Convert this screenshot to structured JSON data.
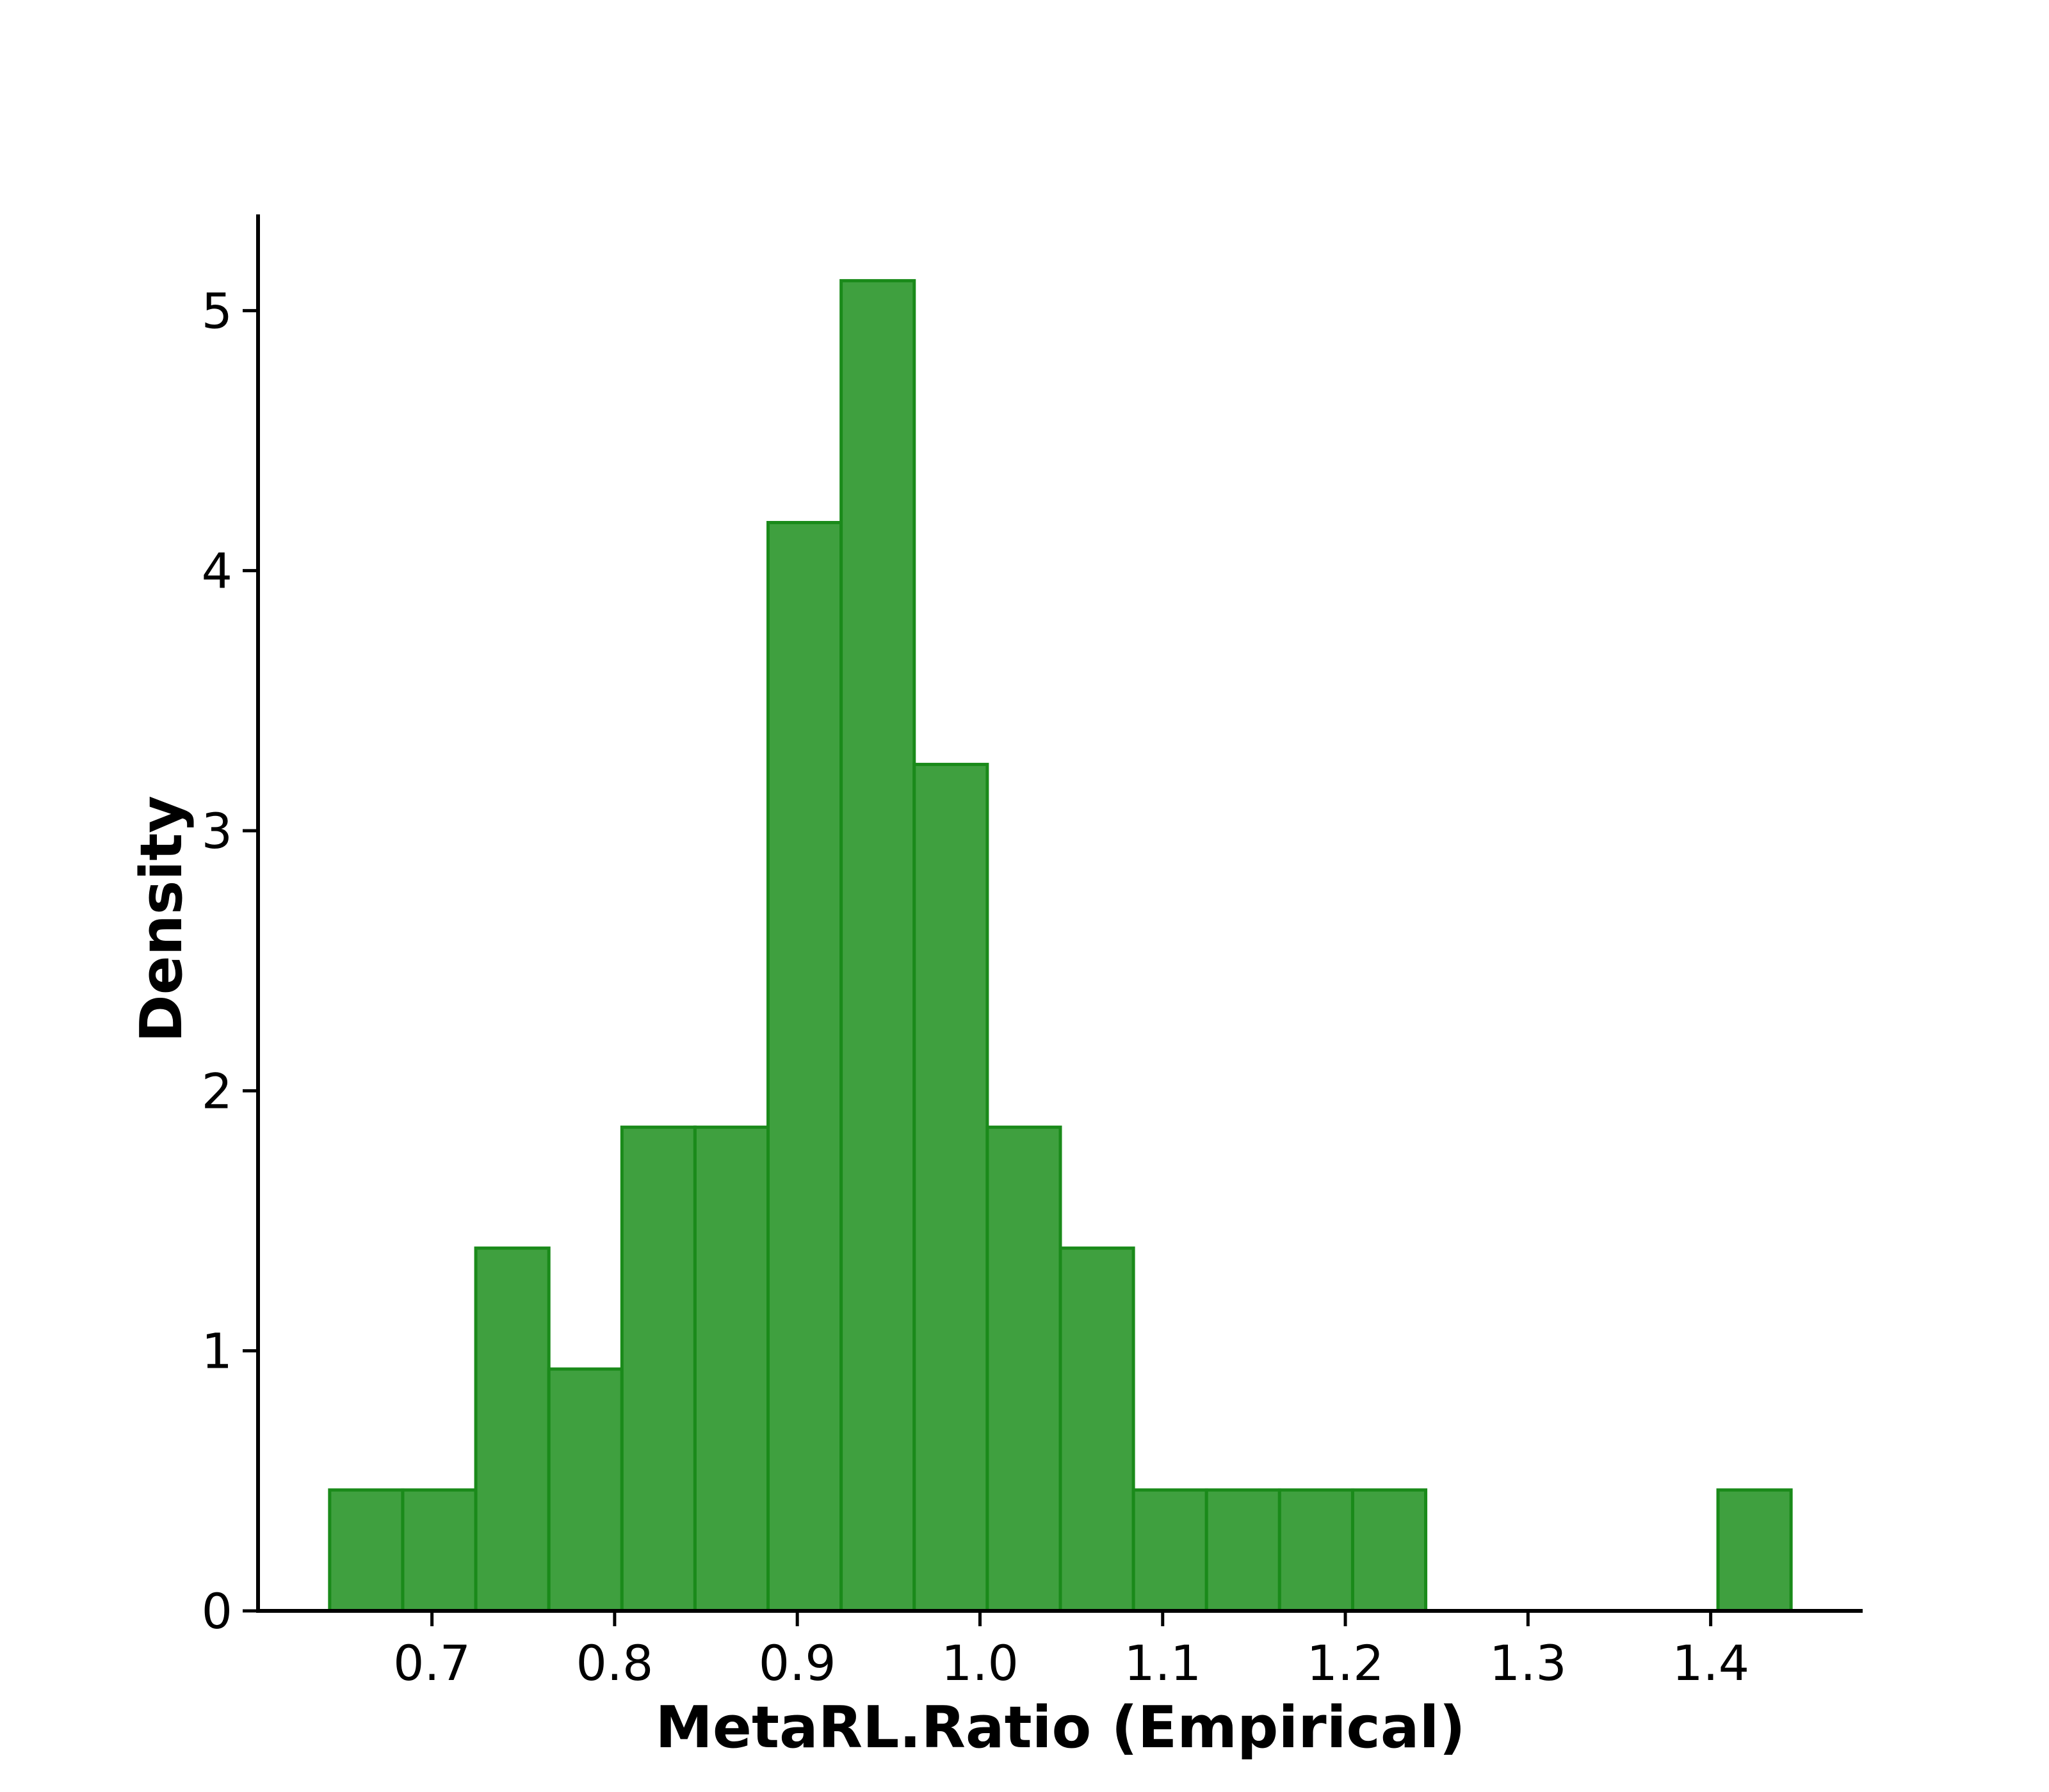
{
  "chart_data": {
    "type": "bar",
    "subtype": "histogram",
    "title": "",
    "xlabel": "MetaRL.Ratio (Empirical)",
    "ylabel": "Density",
    "xlim": [
      0.6048,
      1.4832
    ],
    "ylim": [
      0,
      5.37
    ],
    "xticks": [
      0.7,
      0.8,
      0.9,
      1.0,
      1.1,
      1.2,
      1.3,
      1.4
    ],
    "xtick_labels": [
      "0.7",
      "0.8",
      "0.9",
      "1.0",
      "1.1",
      "1.2",
      "1.3",
      "1.4"
    ],
    "yticks": [
      0,
      1,
      2,
      3,
      4,
      5
    ],
    "ytick_labels": [
      "0",
      "1",
      "2",
      "3",
      "4",
      "5"
    ],
    "bin_edges": [
      0.644,
      0.684,
      0.724,
      0.764,
      0.804,
      0.844,
      0.884,
      0.924,
      0.964,
      1.004,
      1.044,
      1.084,
      1.124,
      1.164,
      1.204,
      1.244,
      1.284,
      1.324,
      1.364,
      1.404,
      1.444
    ],
    "values": [
      0.465,
      0.465,
      1.395,
      0.93,
      1.86,
      1.86,
      4.185,
      5.115,
      3.255,
      1.86,
      1.395,
      0.465,
      0.465,
      0.465,
      0.465,
      0,
      0,
      0,
      0,
      0.465
    ],
    "bar_fill": "#3fa03f",
    "bar_edge": "#1a8a1a",
    "axis_color": "#000000",
    "grid": false,
    "spines": [
      "left",
      "bottom"
    ]
  }
}
